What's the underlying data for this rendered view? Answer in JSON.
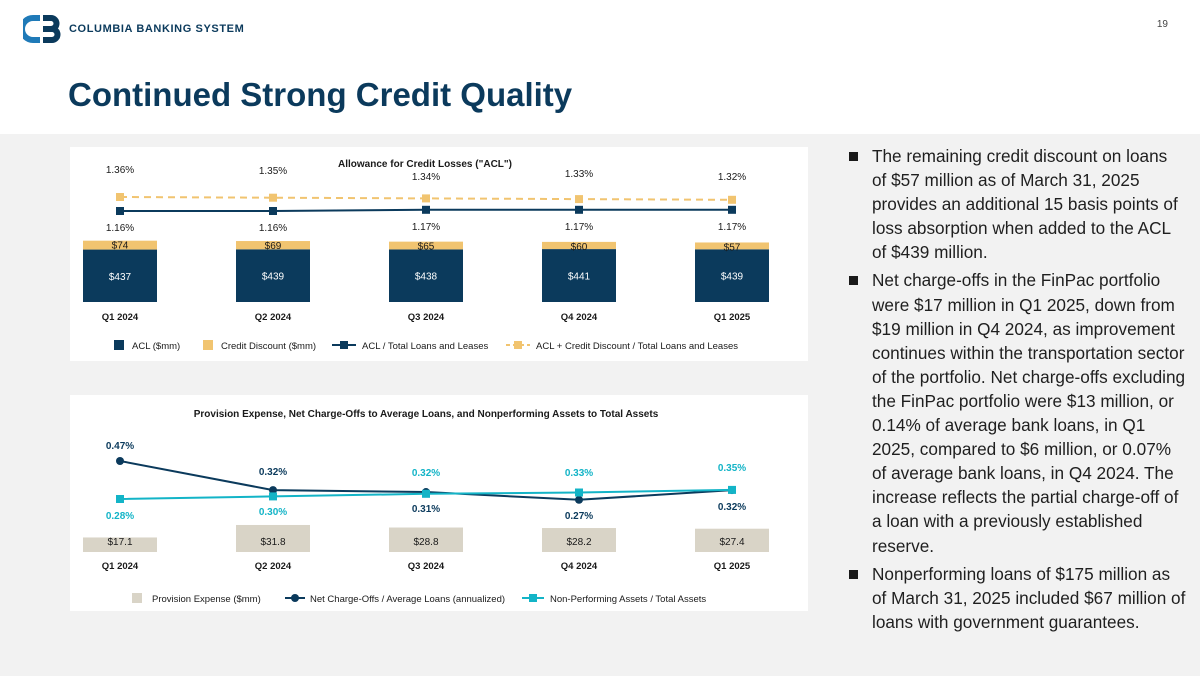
{
  "header": {
    "logo_text": "COLUMBIA BANKING SYSTEM",
    "page_number": "19",
    "title": "Continued Strong Credit Quality"
  },
  "colors": {
    "navy": "#0b3a5c",
    "gold": "#f1c470",
    "teal": "#13b4c7",
    "gray_bar": "#d9d4c7",
    "band": "#f2f2f2"
  },
  "bullets": [
    "The remaining credit discount on loans of $57 million as of March 31, 2025 provides an additional 15 basis points of loss absorption when added to the ACL of $439 million.",
    "Net charge-offs in the FinPac portfolio were $17 million in Q1 2025, down from $19 million in Q4 2024, as improvement continues within the transportation sector of the portfolio. Net charge-offs excluding the FinPac portfolio were $13 million, or 0.14% of average bank loans, in Q1 2025, compared to $6 million, or 0.07% of average bank loans, in Q4 2024. The increase reflects the partial charge-off of a loan with a previously established reserve.",
    "Nonperforming loans of $175 million as of March 31, 2025 included $67 million of loans with government guarantees."
  ],
  "chart_data": [
    {
      "type": "bar",
      "title": "Allowance for Credit Losses (\"ACL\")",
      "categories": [
        "Q1 2024",
        "Q2 2024",
        "Q3 2024",
        "Q4 2024",
        "Q1 2025"
      ],
      "series": [
        {
          "name": "ACL ($mm)",
          "kind": "bar",
          "stack": "a",
          "values": [
            437,
            439,
            438,
            441,
            439
          ],
          "labels": [
            "$437",
            "$439",
            "$438",
            "$441",
            "$439"
          ],
          "color": "#0b3a5c"
        },
        {
          "name": "Credit Discount ($mm)",
          "kind": "bar",
          "stack": "a",
          "values": [
            74,
            69,
            65,
            60,
            57
          ],
          "labels": [
            "$74",
            "$69",
            "$65",
            "$60",
            "$57"
          ],
          "color": "#f1c470"
        },
        {
          "name": "ACL / Total Loans and Leases",
          "kind": "line",
          "values": [
            1.16,
            1.16,
            1.17,
            1.17,
            1.17
          ],
          "labels": [
            "1.16%",
            "1.16%",
            "1.17%",
            "1.17%",
            "1.17%"
          ],
          "color": "#0b3a5c"
        },
        {
          "name": "ACL + Credit Discount / Total Loans and Leases",
          "kind": "line-dashed",
          "values": [
            1.36,
            1.35,
            1.34,
            1.33,
            1.32
          ],
          "labels": [
            "1.36%",
            "1.35%",
            "1.34%",
            "1.33%",
            "1.32%"
          ],
          "color": "#f1c470"
        }
      ],
      "legend_position": "bottom",
      "grid": false
    },
    {
      "type": "bar",
      "title": "Provision Expense, Net Charge-Offs to Average Loans, and Nonperforming Assets to Total Assets",
      "categories": [
        "Q1 2024",
        "Q2 2024",
        "Q3 2024",
        "Q4 2024",
        "Q1 2025"
      ],
      "series": [
        {
          "name": "Provision Expense ($mm)",
          "kind": "bar",
          "values": [
            17.1,
            31.8,
            28.8,
            28.2,
            27.4
          ],
          "labels": [
            "$17.1",
            "$31.8",
            "$28.8",
            "$28.2",
            "$27.4"
          ],
          "color": "#d9d4c7"
        },
        {
          "name": "Net Charge-Offs / Average Loans (annualized)",
          "kind": "line",
          "values": [
            0.47,
            0.32,
            0.31,
            0.27,
            0.32
          ],
          "labels": [
            "0.47%",
            "0.32%",
            "0.31%",
            "0.27%",
            "0.32%"
          ],
          "color": "#0b3a5c"
        },
        {
          "name": "Non-Performing Assets / Total Assets",
          "kind": "line",
          "values": [
            0.28,
            0.3,
            0.32,
            0.33,
            0.35
          ],
          "labels": [
            "0.28%",
            "0.30%",
            "0.32%",
            "0.33%",
            "0.35%"
          ],
          "color": "#13b4c7"
        }
      ],
      "legend_position": "bottom",
      "grid": false
    }
  ]
}
